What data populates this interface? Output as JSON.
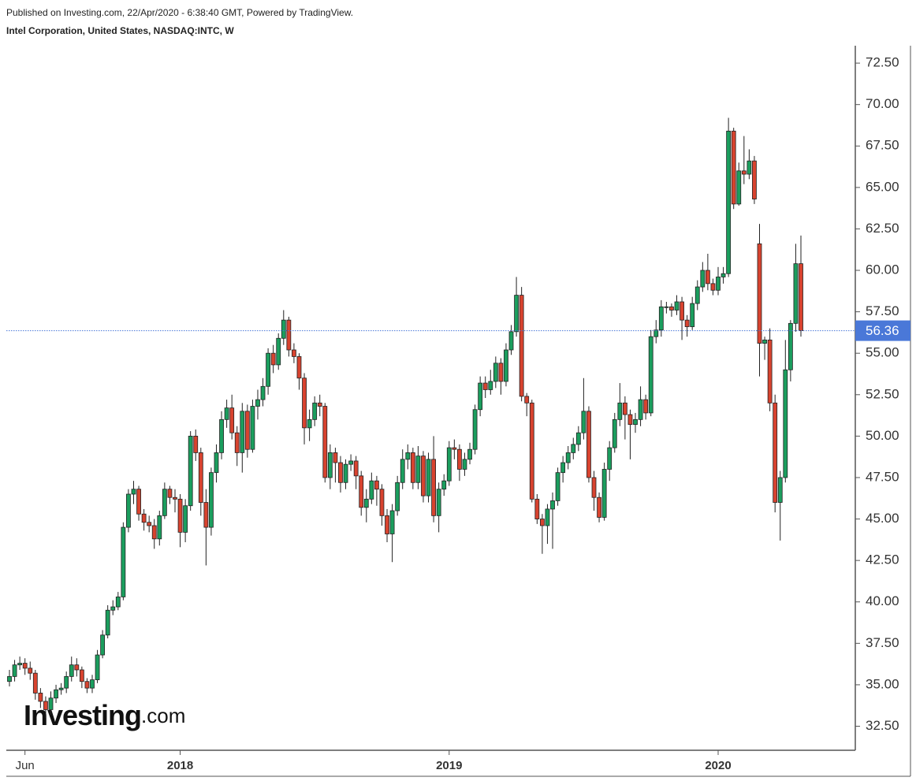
{
  "header": {
    "published": "Published on Investing.com, 22/Apr/2020 - 6:38:40 GMT, Powered by TradingView.",
    "symbol": "Intel Corporation, United States, NASDAQ:INTC, W"
  },
  "watermark": {
    "brand": "Investing",
    "suffix": ".com"
  },
  "chart_data": {
    "type": "candlestick",
    "up_color": "#1b9e5e",
    "down_color": "#d8432f",
    "border_color": "#222222",
    "price_line_color": "#4a78d8",
    "ylim": [
      31.05,
      73.55
    ],
    "yticks": [
      {
        "value": 32.5,
        "label": "32.50"
      },
      {
        "value": 35,
        "label": "35.00"
      },
      {
        "value": 37.5,
        "label": "37.50"
      },
      {
        "value": 40,
        "label": "40.00"
      },
      {
        "value": 42.5,
        "label": "42.50"
      },
      {
        "value": 45,
        "label": "45.00"
      },
      {
        "value": 47.5,
        "label": "47.50"
      },
      {
        "value": 50,
        "label": "50.00"
      },
      {
        "value": 52.5,
        "label": "52.50"
      },
      {
        "value": 55,
        "label": "55.00"
      },
      {
        "value": 57.5,
        "label": "57.50"
      },
      {
        "value": 60,
        "label": "60.00"
      },
      {
        "value": 62.5,
        "label": "62.50"
      },
      {
        "value": 65,
        "label": "65.00"
      },
      {
        "value": 67.5,
        "label": "67.50"
      },
      {
        "value": 70,
        "label": "70.00"
      },
      {
        "value": 72.5,
        "label": "72.50"
      }
    ],
    "categories": [
      null,
      null,
      null,
      "Jun",
      null,
      null,
      null,
      null,
      null,
      null,
      null,
      null,
      null,
      null,
      null,
      null,
      null,
      null,
      null,
      null,
      null,
      null,
      null,
      null,
      null,
      null,
      null,
      null,
      null,
      null,
      null,
      null,
      null,
      "2018",
      null,
      null,
      null,
      null,
      null,
      null,
      null,
      null,
      null,
      null,
      null,
      null,
      null,
      null,
      null,
      null,
      null,
      null,
      null,
      null,
      null,
      null,
      null,
      null,
      null,
      null,
      null,
      null,
      null,
      null,
      null,
      null,
      null,
      null,
      null,
      null,
      null,
      null,
      null,
      null,
      null,
      null,
      null,
      null,
      null,
      null,
      null,
      null,
      null,
      null,
      null,
      "2019",
      null,
      null,
      null,
      null,
      null,
      null,
      null,
      null,
      null,
      null,
      null,
      null,
      null,
      null,
      null,
      null,
      null,
      null,
      null,
      null,
      null,
      null,
      null,
      null,
      null,
      null,
      null,
      null,
      null,
      null,
      null,
      null,
      null,
      null,
      null,
      null,
      null,
      null,
      null,
      null,
      null,
      null,
      null,
      null,
      null,
      null,
      null,
      null,
      null,
      null,
      null,
      "2020",
      null,
      null,
      null,
      null,
      null,
      null,
      null,
      null,
      null,
      null,
      null,
      null,
      null,
      null,
      null,
      null
    ],
    "open": [
      35.2,
      35.5,
      36.2,
      36.3,
      36.0,
      35.7,
      34.5,
      34.0,
      33.5,
      34.2,
      34.7,
      34.8,
      35.5,
      36.2,
      35.9,
      35.2,
      34.8,
      35.3,
      36.8,
      38.0,
      39.5,
      39.7,
      40.3,
      44.5,
      46.5,
      46.8,
      45.3,
      44.8,
      44.6,
      43.8,
      45.2,
      46.8,
      46.3,
      46.2,
      44.2,
      45.8,
      50.0,
      49.0,
      46.0,
      44.5,
      47.8,
      49.0,
      51.0,
      51.7,
      50.2,
      49.0,
      51.5,
      49.2,
      51.8,
      52.2,
      53.0,
      55.0,
      54.3,
      55.9,
      57.0,
      55.2,
      54.8,
      53.5,
      50.5,
      51.0,
      52.0,
      51.8,
      47.5,
      49.0,
      48.4,
      47.2,
      48.3,
      48.5,
      47.6,
      45.7,
      46.2,
      47.3,
      46.8,
      45.2,
      44.1,
      45.5,
      47.2,
      48.6,
      49.0,
      47.2,
      48.8,
      46.4,
      48.6,
      45.2,
      46.8,
      47.3,
      49.3,
      49.2,
      48.0,
      48.6,
      49.2,
      51.6,
      53.2,
      52.8,
      53.3,
      54.4,
      53.3,
      55.2,
      56.3,
      58.5,
      52.4,
      52.0,
      46.2,
      45.0,
      44.6,
      45.6,
      46.1,
      47.8,
      48.4,
      49.0,
      49.5,
      50.2,
      51.5,
      47.5,
      46.3,
      45.1,
      48.0,
      49.3,
      51.0,
      52.0,
      51.3,
      50.7,
      51.0,
      52.2,
      51.4,
      56.0,
      56.4,
      57.8,
      57.8,
      57.6,
      58.1,
      57.0,
      56.6,
      58.0,
      59.0,
      60.0,
      59.2,
      58.8,
      59.6,
      59.8,
      68.4,
      64.0,
      66.0,
      65.8,
      66.6,
      61.6,
      55.6,
      55.8,
      52.0,
      46.0,
      47.5,
      54.0,
      56.8,
      60.4
    ],
    "high": [
      35.9,
      36.5,
      36.7,
      36.6,
      36.4,
      35.9,
      34.8,
      34.3,
      34.6,
      35.0,
      35.1,
      35.8,
      36.7,
      36.6,
      36.1,
      35.4,
      35.6,
      37.1,
      38.3,
      39.8,
      40.1,
      40.6,
      44.8,
      46.8,
      47.3,
      47.0,
      45.6,
      45.2,
      45.0,
      45.5,
      47.2,
      47.0,
      46.8,
      46.5,
      46.2,
      50.3,
      50.4,
      49.3,
      46.8,
      48.1,
      49.5,
      51.5,
      52.2,
      52.5,
      50.6,
      52.0,
      51.9,
      52.2,
      52.8,
      53.5,
      55.3,
      55.5,
      56.2,
      57.6,
      57.2,
      55.6,
      55.0,
      53.8,
      51.6,
      52.4,
      52.5,
      52.0,
      49.5,
      49.3,
      48.8,
      48.6,
      48.9,
      48.8,
      47.9,
      46.8,
      47.8,
      47.6,
      47.1,
      45.6,
      45.9,
      47.6,
      49.2,
      49.5,
      49.3,
      49.4,
      49.1,
      49.0,
      50.0,
      47.2,
      47.7,
      49.7,
      49.8,
      49.5,
      49.0,
      49.6,
      51.9,
      53.6,
      53.6,
      54.0,
      54.8,
      54.7,
      55.6,
      56.7,
      59.6,
      59.0,
      52.6,
      52.2,
      46.5,
      45.3,
      45.9,
      46.6,
      48.1,
      48.8,
      49.4,
      49.9,
      50.6,
      53.5,
      51.8,
      47.9,
      46.6,
      48.4,
      49.7,
      51.4,
      53.2,
      52.4,
      51.6,
      51.4,
      53.0,
      52.5,
      56.4,
      57.0,
      58.2,
      58.1,
      58.0,
      58.5,
      58.4,
      57.3,
      58.4,
      59.4,
      60.5,
      61.0,
      59.5,
      60.2,
      60.2,
      69.2,
      68.6,
      66.5,
      68.1,
      67.3,
      66.9,
      62.8,
      56.0,
      56.5,
      52.5,
      47.9,
      55.8,
      57.0,
      61.6,
      62.1
    ],
    "low": [
      34.9,
      35.2,
      35.9,
      35.6,
      35.3,
      34.1,
      33.6,
      33.0,
      33.2,
      33.9,
      34.4,
      34.5,
      35.2,
      35.5,
      34.8,
      34.5,
      34.5,
      35.1,
      36.6,
      37.8,
      39.2,
      39.5,
      40.1,
      44.2,
      45.9,
      44.9,
      44.3,
      44.2,
      43.2,
      43.4,
      45.0,
      45.9,
      45.4,
      43.3,
      43.6,
      45.5,
      48.5,
      45.2,
      42.2,
      44.0,
      47.2,
      48.6,
      50.5,
      49.8,
      48.2,
      47.8,
      48.7,
      49.0,
      51.0,
      51.8,
      52.5,
      53.8,
      54.0,
      55.5,
      54.8,
      54.4,
      52.8,
      49.5,
      49.7,
      50.6,
      51.2,
      47.2,
      46.8,
      47.2,
      46.6,
      46.8,
      47.9,
      46.8,
      45.2,
      44.8,
      45.9,
      45.8,
      44.6,
      43.6,
      42.4,
      45.2,
      46.8,
      48.0,
      46.8,
      46.8,
      46.0,
      46.0,
      44.8,
      44.2,
      46.4,
      47.0,
      48.6,
      47.3,
      47.6,
      48.3,
      48.9,
      51.2,
      52.3,
      52.5,
      52.9,
      52.5,
      53.0,
      54.9,
      56.0,
      52.1,
      51.2,
      46.0,
      44.7,
      42.9,
      43.5,
      43.2,
      45.8,
      47.2,
      48.0,
      48.6,
      49.1,
      49.8,
      47.2,
      45.5,
      44.8,
      44.9,
      47.3,
      49.0,
      50.6,
      49.8,
      48.6,
      50.2,
      50.6,
      51.0,
      51.2,
      55.6,
      56.0,
      57.4,
      57.2,
      57.3,
      55.8,
      56.0,
      56.4,
      57.6,
      58.7,
      58.8,
      58.5,
      58.5,
      59.2,
      59.6,
      63.7,
      63.9,
      65.2,
      65.5,
      64.0,
      53.6,
      54.6,
      51.5,
      45.4,
      43.7,
      47.2,
      53.3,
      56.3,
      56.0
    ],
    "close": [
      35.5,
      36.2,
      36.3,
      36.0,
      35.7,
      34.5,
      34.0,
      33.5,
      34.2,
      34.7,
      34.8,
      35.5,
      36.2,
      35.9,
      35.2,
      34.8,
      35.3,
      36.8,
      38.0,
      39.5,
      39.7,
      40.3,
      44.5,
      46.5,
      46.8,
      45.3,
      44.8,
      44.6,
      43.8,
      45.2,
      46.8,
      46.3,
      46.2,
      44.2,
      45.8,
      50.0,
      49.0,
      46.0,
      44.5,
      47.8,
      49.0,
      51.0,
      51.7,
      50.2,
      49.0,
      51.5,
      49.2,
      51.8,
      52.2,
      53.0,
      55.0,
      54.3,
      55.9,
      57.0,
      55.2,
      54.8,
      53.5,
      50.5,
      51.0,
      52.0,
      51.8,
      47.5,
      49.0,
      48.4,
      47.2,
      48.3,
      48.5,
      47.6,
      45.7,
      46.2,
      47.3,
      46.8,
      45.2,
      44.1,
      45.5,
      47.2,
      48.6,
      49.0,
      47.2,
      48.8,
      46.4,
      48.6,
      45.2,
      46.8,
      47.3,
      49.3,
      49.2,
      48.0,
      48.6,
      49.2,
      51.6,
      53.2,
      52.8,
      53.3,
      54.4,
      53.3,
      55.2,
      56.3,
      58.5,
      52.4,
      52.0,
      46.2,
      45.0,
      44.6,
      45.6,
      46.1,
      47.8,
      48.4,
      49.0,
      49.5,
      50.2,
      51.5,
      47.5,
      46.3,
      45.1,
      48.0,
      49.3,
      51.0,
      52.0,
      51.3,
      50.7,
      51.0,
      52.2,
      51.4,
      56.0,
      56.4,
      57.8,
      57.8,
      57.6,
      58.1,
      57.0,
      56.6,
      58.0,
      59.0,
      60.0,
      59.2,
      58.8,
      59.6,
      59.8,
      68.4,
      64.0,
      66.0,
      65.8,
      66.6,
      64.3,
      55.6,
      55.8,
      52.0,
      46.0,
      47.5,
      54.0,
      56.8,
      60.4,
      56.36
    ]
  }
}
